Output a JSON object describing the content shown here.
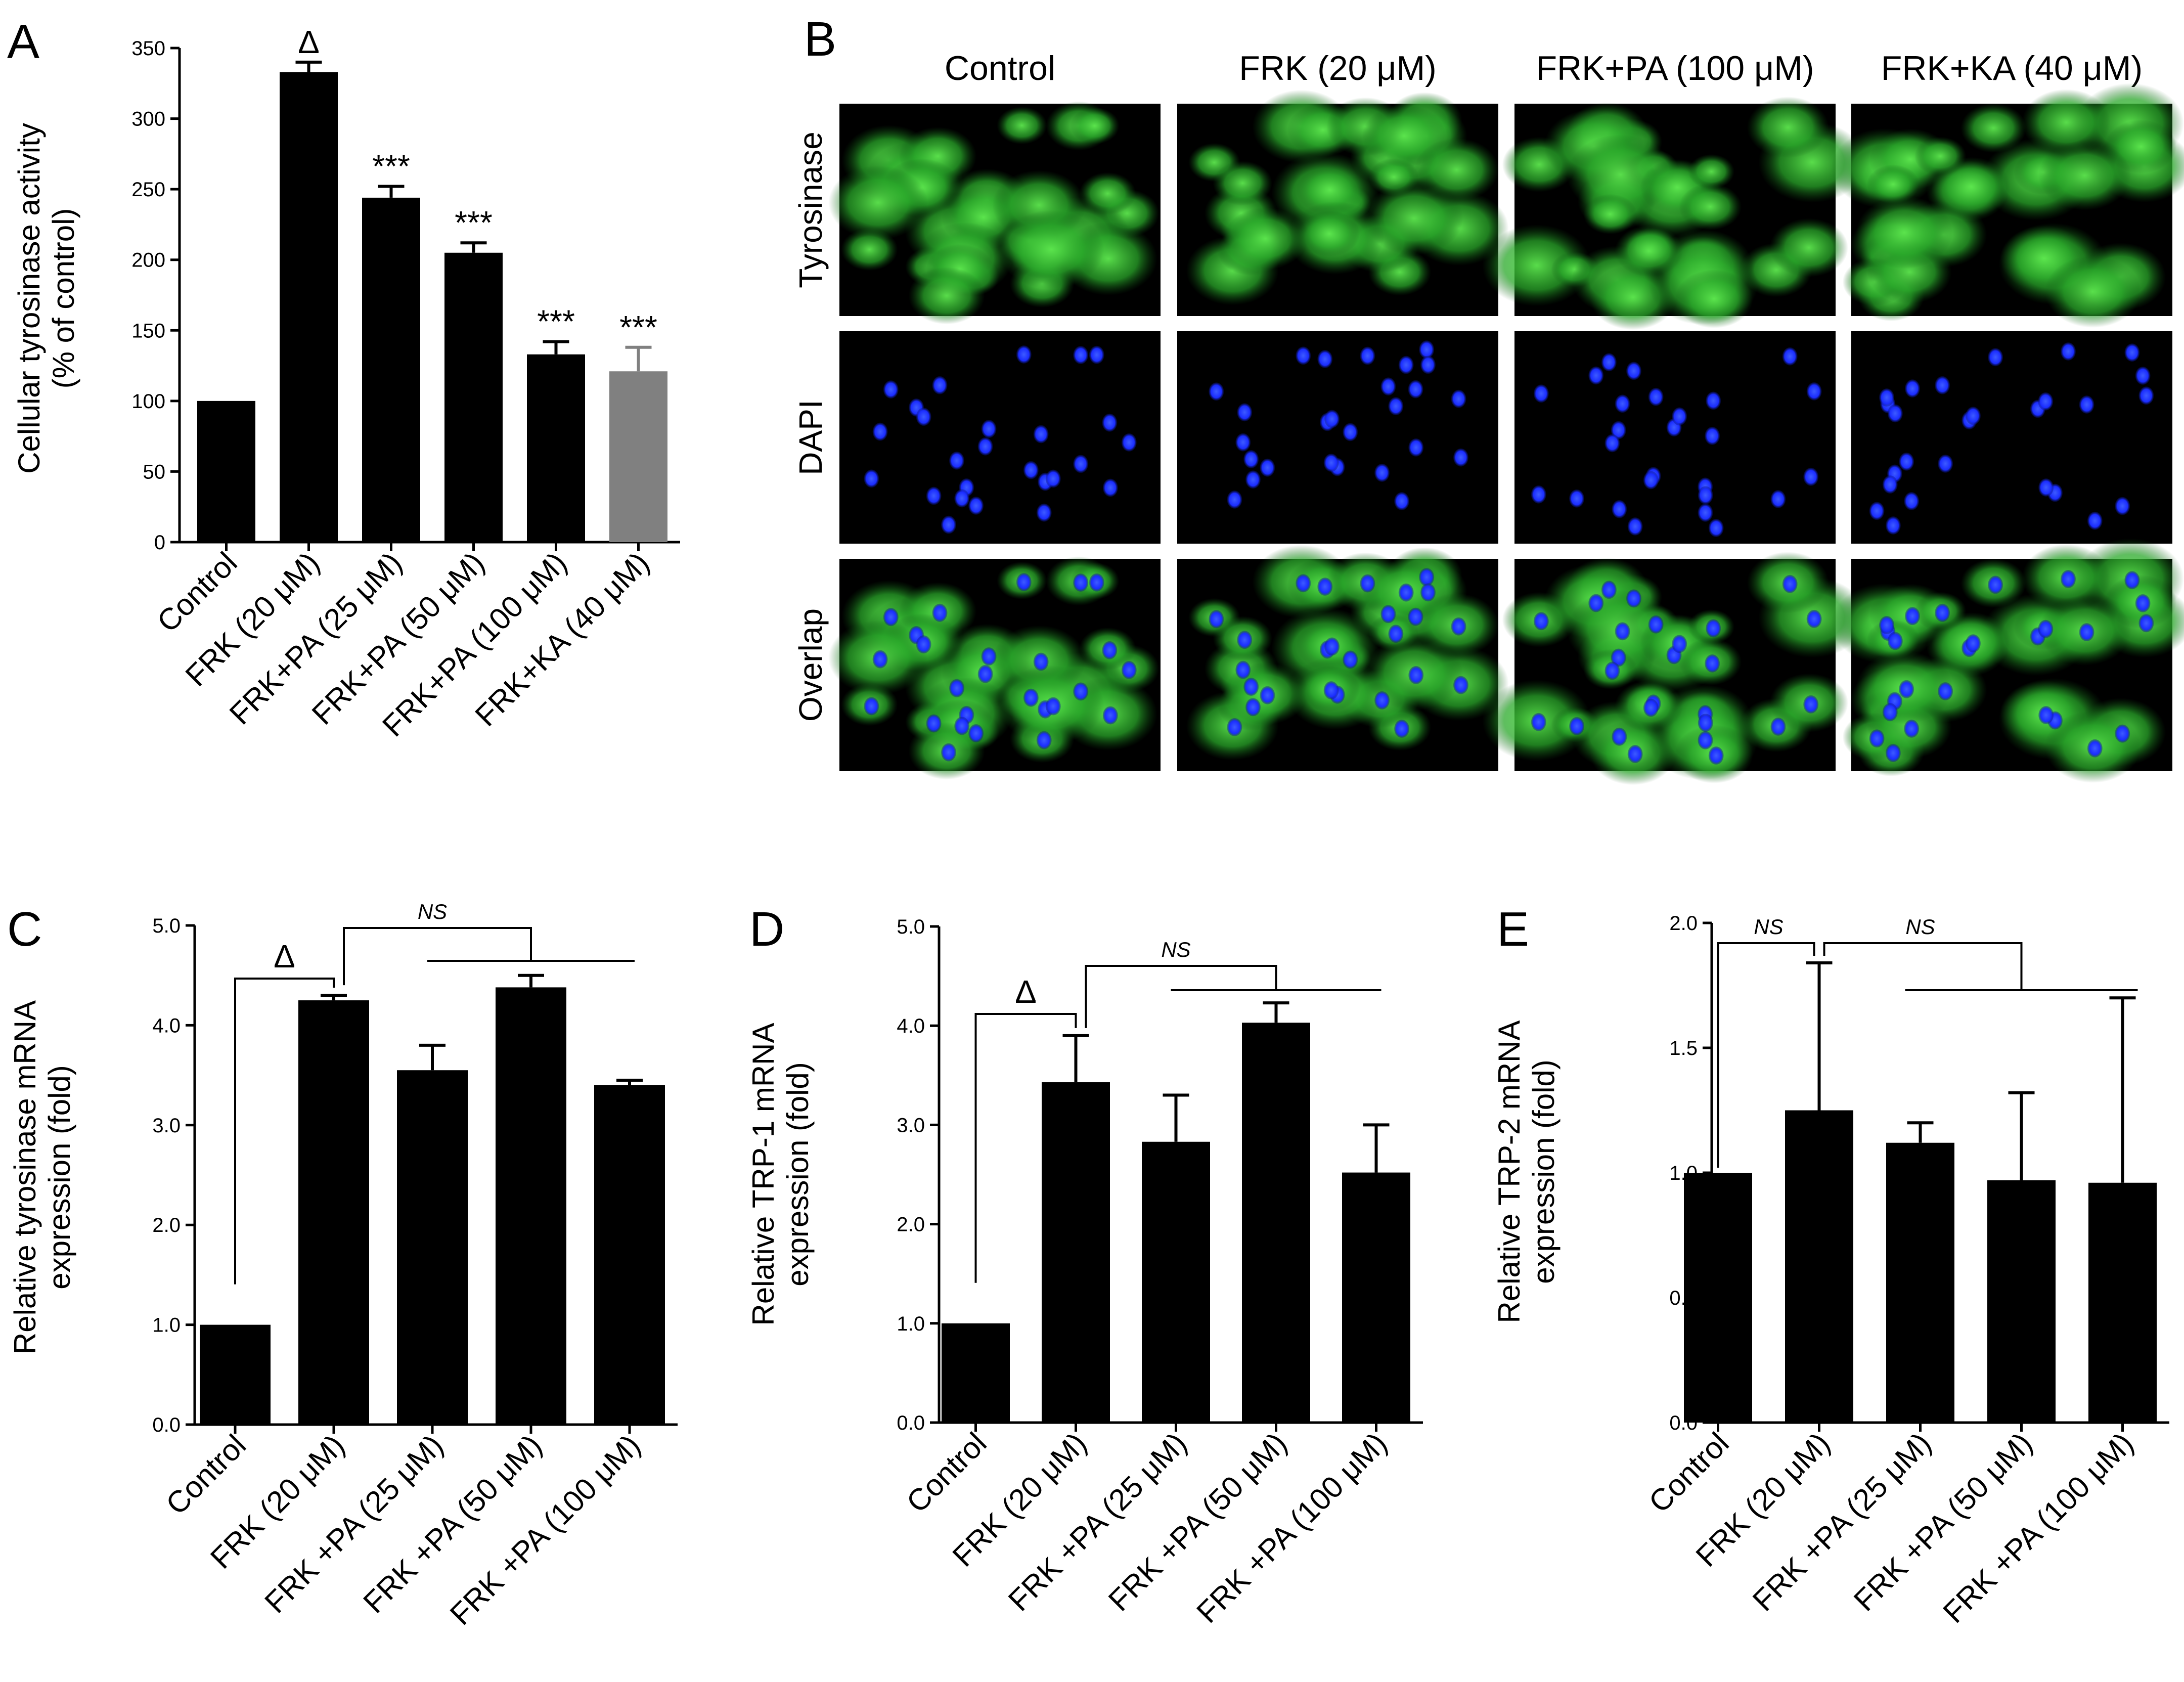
{
  "panels": {
    "A": "A",
    "B": "B",
    "C": "C",
    "D": "D",
    "E": "E"
  },
  "colors": {
    "bar": "#000000",
    "bar_alt": "#808080",
    "green": "#2fbf2a",
    "blue": "#1a2cff",
    "bg": "#000000"
  },
  "micrographs": {
    "columns": [
      "Control",
      "FRK (20 μM)",
      "FRK+PA (100 μM)",
      "FRK+KA (40 μM)"
    ],
    "rows": [
      "Tyrosinase",
      "DAPI",
      "Overlap"
    ],
    "channels": [
      "green",
      "blue",
      "merge"
    ]
  },
  "chart_data": [
    {
      "id": "A",
      "type": "bar",
      "categories": [
        "Control",
        "FRK (20 μM)",
        "FRK+PA (25 μM)",
        "FRK+PA (50 μM)",
        "FRK+PA (100 μM)",
        "FRK+KA (40 μM)"
      ],
      "values": [
        100,
        333,
        244,
        205,
        133,
        121
      ],
      "errors": [
        0,
        7,
        8,
        7,
        9,
        17
      ],
      "bar_colors": [
        "#000000",
        "#000000",
        "#000000",
        "#000000",
        "#000000",
        "#808080"
      ],
      "annotations": [
        "",
        "Δ",
        "***",
        "***",
        "***",
        "***"
      ],
      "ylabel_line1": "Cellular tyrosinase activity",
      "ylabel_line2": "(% of control)",
      "ylim": [
        0,
        350
      ],
      "yticks": [
        "0",
        "50",
        "100",
        "150",
        "200",
        "250",
        "300",
        "350"
      ],
      "ytick_values": [
        0,
        50,
        100,
        150,
        200,
        250,
        300,
        350
      ]
    },
    {
      "id": "C",
      "type": "bar",
      "categories": [
        "Control",
        "FRK (20 μM)",
        "FRK +PA (25 μM)",
        "FRK +PA (50 μM)",
        "FRK +PA (100 μM)"
      ],
      "values": [
        1.0,
        4.25,
        3.55,
        4.38,
        3.4
      ],
      "errors": [
        0,
        0.05,
        0.25,
        0.12,
        0.05
      ],
      "bar_colors": [
        "#000000",
        "#000000",
        "#000000",
        "#000000",
        "#000000"
      ],
      "delta": "Δ",
      "ns_label": "NS",
      "ylabel_line1": "Relative tyrosinase mRNA",
      "ylabel_line2": "expression (fold)",
      "ylim": [
        0,
        5
      ],
      "yticks": [
        "0.0",
        "1.0",
        "2.0",
        "3.0",
        "4.0",
        "5.0"
      ],
      "ytick_values": [
        0,
        1,
        2,
        3,
        4,
        5
      ]
    },
    {
      "id": "D",
      "type": "bar",
      "categories": [
        "Control",
        "FRK (20 μM)",
        "FRK +PA (25 μM)",
        "FRK +PA (50 μM)",
        "FRK +PA (100 μM)"
      ],
      "values": [
        1.0,
        3.43,
        2.83,
        4.03,
        2.52
      ],
      "errors": [
        0,
        0.47,
        0.47,
        0.2,
        0.48
      ],
      "bar_colors": [
        "#000000",
        "#000000",
        "#000000",
        "#000000",
        "#000000"
      ],
      "delta": "Δ",
      "ns_label": "NS",
      "ylabel_line1": "Relative TRP-1 mRNA",
      "ylabel_line2": "expression (fold)",
      "ylim": [
        0,
        5
      ],
      "yticks": [
        "0.0",
        "1.0",
        "2.0",
        "3.0",
        "4.0",
        "5.0"
      ],
      "ytick_values": [
        0,
        1,
        2,
        3,
        4,
        5
      ]
    },
    {
      "id": "E",
      "type": "bar",
      "categories": [
        "Control",
        "FRK (20 μM)",
        "FRK +PA (25 μM)",
        "FRK +PA (50 μM)",
        "FRK +PA (100 μM)"
      ],
      "values": [
        1.0,
        1.25,
        1.12,
        0.97,
        0.96
      ],
      "errors": [
        0,
        0.59,
        0.08,
        0.35,
        0.74
      ],
      "bar_colors": [
        "#000000",
        "#000000",
        "#000000",
        "#000000",
        "#000000"
      ],
      "ns_label_left": "NS",
      "ns_label": "NS",
      "ylabel_line1": "Relative TRP-2 mRNA",
      "ylabel_line2": "expression (fold)",
      "ylim": [
        0,
        2
      ],
      "yticks": [
        "0.0",
        "0.5",
        "1.0",
        "1.5",
        "2.0"
      ],
      "ytick_values": [
        0,
        0.5,
        1,
        1.5,
        2
      ]
    }
  ]
}
